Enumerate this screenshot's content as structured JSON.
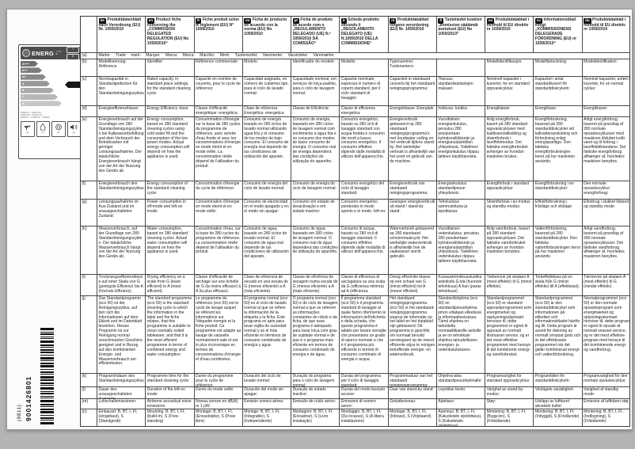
{
  "sidebar": {
    "markers": {
      "top_left": "a)",
      "top_right": "b)",
      "bars_right": "(d)"
    },
    "energy_label": {
      "title": "ENERG",
      "subtitle_lines": [
        "Y IJA",
        "IE"
      ],
      "window_labels": [
        "I",
        "II"
      ],
      "classes": [
        "A+++",
        "A++",
        "A+",
        "A",
        "B",
        "C",
        "D"
      ],
      "class_colors": [
        "#6f6f6f",
        "#7c7c7c",
        "#8a8a8a",
        "#999999",
        "#a8a8a8",
        "#b7b7b7",
        "#c6c6c6"
      ],
      "word_lines": [
        "ENERGIA · ЕНЕРГИЯ",
        "ΕΝΕΡΓΕΙΑ · ENERGIJA",
        "ENERGY · ENERGIE · ENERGI"
      ],
      "icon_names": [
        "tap-icon",
        "water-drop-icon",
        "dishes-icon",
        "speaker-icon"
      ],
      "icon_marks": [
        "(b)",
        "(c)",
        "(d)",
        "(e)"
      ]
    },
    "barcode": {
      "number": "9001426801",
      "batch": "(9811)"
    }
  },
  "table": {
    "languages": [
      {
        "code": "de",
        "title": "Produktdatenblatt nach Verordnung (EU) Nr. 1059/2010"
      },
      {
        "code": "en",
        "title": "Product fiche concerning the „COMMISSION DELEGATED REGULATION (EU) No 1059/2010“"
      },
      {
        "code": "fr",
        "title": "Fiche produit selon le règlement (EU) N° 1059/2010"
      },
      {
        "code": "es",
        "title": "Ficha de producto de acuerdo con la norma (EU) No 1059/2010"
      },
      {
        "code": "pt",
        "title": "Ficha de produto de acordo com o „REGULAMENTO DELEGADO (UE) N.º 1059/2010 DA COMISSÃO“"
      },
      {
        "code": "it",
        "title": "Scheda prodotto secondo il „REGOLAMENTO DELEGATO (UE) N.1059/2010 DELLA COMMISSIONE“"
      },
      {
        "code": "nl",
        "title": "Produktdatablad volgens verordening (EU) Nr. 1059/2010"
      },
      {
        "code": "fi",
        "title": "Tuotetiedot koskien „komission säätämät asetukset (EU) No 1059/2010“"
      },
      {
        "code": "no",
        "title": "Produktdatablad i henhold til EU direktiv nr 1059/2010"
      },
      {
        "code": "sv",
        "title": "Informationsblad enligt „KOMMISSIONENS DELEGERADE FÖRORDNING (EU) nr 1059/2010“"
      },
      {
        "code": "da",
        "title": "Produktdatablad i henhold til EU direktiv nr 1059/2010"
      }
    ],
    "rows": [
      {
        "key": "a",
        "label": "(a)",
        "merged": true,
        "text": "Marke: Trade mark: Marque: Marca: Marca: Marchio: Merk: Tuotemerkki: Varemerke: Varumärke: Varemærke:"
      },
      {
        "key": "b",
        "label": "(b)",
        "cells": [
          "Modellkennung: Référence",
          "Identifier:",
          "Référence commerciale:",
          "Modelo:",
          "Identificador do modelo:",
          "Modello:",
          "Typenummer: Tuotenumero:",
          "",
          "Modellidentifikasjon:",
          "Modellbeteckning:",
          "Modelidentifikation:"
        ]
      },
      {
        "key": "c",
        "label": "(c)",
        "cells": [
          "Nennkapazität in Standardgedecken für den Standardreinigungszyklus:",
          "Rated capacity, in standard place settings, for the standard cleaning cycle:",
          "Capacité en nombre de couverts, pour le cycle de référence:",
          "Capacidad asignada, en número de cubiertos tipo, para el ciclo de lavado normal:",
          "Capacidade nominal, em serviços de loiça-padrão, para o ciclo de lavagem normal:",
          "Capacità nominale, espressa in numero di coperti standard, per il ciclo standard di lavaggio:",
          "Capaciteit in standaard couverts bij het standaard reinigingsprogramma:",
          "Tilavuus standardiastiastojen mukaan:",
          "Nominell kapasitet i kuverter, for en standard oppvaskcyklus:",
          "Kapacitet i antal standardkuvert för standarddiskcykeln:",
          "Nominel kapacitet, anført i kuverter, for en normal cyklus:"
        ]
      },
      {
        "key": "d",
        "label": "(d)",
        "cells": [
          "Energieeffizienzklasse:",
          "Energy Efficiency class:",
          "Classe d'efficacité énergétique: energética:",
          "Clase de eficiencia Energética: energetica:",
          "Classe de Eficiência:",
          "Classe di efficienza energetica:",
          "Energieklasse: Energiate",
          "hokkuus- luokka:",
          "Energiklasse:",
          "Energiklass:",
          "Energiklasse:"
        ]
      },
      {
        "key": "e",
        "label": "(e)",
        "cells": [
          "Energieverbrauch auf der Grundlage von 280 Standardreinigungszyklen bei Kaltwasserbefüllung und dem Verbrauch der Betriebsarten mit geringer Leistungsaufnahme. Der tatsächliche Energieverbrauch hängt von der Art der Nutzung des Geräts ab.",
          "Energy consumption, based on 280 standard cleaning cycles using cold water fill and the consumption of the low power modes. Actual energy consumption will depend on how the appliance is used.",
          "Consommation d'énergie sur la base de 280 cycles du programme de référence, avec arrivée d'eau froide et avec les consommations d'énergie en mode éteint et en mode veille. La consommation réelle dépend de l'utilisation du produit.",
          "Consumo de energía basado en 280 ciclos de lavado normal utilizando agua fría y el consumo de los modos de bajo consumo. El consumo de energía real depende de las condiciones de utilización del aparato.",
          "Consumo de energia, baseado em 280 ciclos de lavagem normal com enchimento a água fria e no consumo dos modos de baixo consumo de energia. O consumo real de energia dependerá das condições de utilização do aparelho.",
          "Consumo energetico, basato su 280 cicli di lavaggio standard con acqua fredda e consumo dei modi a basso consumo energetico. Il consumo effettivo dipende dalle modalità di utilizzo dell'apparecchio.",
          "Energieverbruik gebaseerd op 280 standaard reinigingsprogramma's met koudwater vulling en het verbruik tijdens stand-by. Het werkelijke verbruik is afhankelijk van het soort en gebruik van de machine.",
          "Vuosittainen energiankulutus, perustuu 280 pesukertaan kylmävesiliitännän ja energiansäästötilan yhteydessä. Todellinen energiankulutus riippuu laitteen käyttötavoista.",
          "Årlig energiforbruk, basert på 280 standard oppvaskcykluser med kaldtvannstilkobling og strømforbruk i laveffektmodus. Det faktiske energiforbruket avhenger av hvordan maskinen brukes.",
          "Energiförbrukning, baserad på 280 standarddiskcykler vid kallvattenanslutning och förbrukning enligt energisparläge. Den faktiska energiförbrukningen beror på hur maskinen används.",
          "Årligt energiforbrug, baseret på grundlag af 280 normale opvaskecyklusser med maskinen tilsluttet koldt vand og til forbrug i laveffekttilstandene. Det faktiske energiforbrug afhænger af, hvorledes maskinen benyttes."
        ]
      },
      {
        "key": "f",
        "label": "(f)",
        "cells": [
          "Energieverbrauch des Standardreinigungszyklus:",
          "Energy consumption of the standard cleaning cycle:",
          "Consommation d'énergie du cycle de référence:",
          "Consumo de energía del ciclo de lavado normal:",
          "Consumo de energia do ciclo de lavagem normal:",
          "Consumo energetico del ciclo di lavaggio standard:",
          "Energieverbruik van standaard reinigingsprogramma:",
          "Energiankulutus standardipesun yhteydessä:",
          "Energiforbruk i standard oppvaskcyklus:",
          "Energiförbrukning i en standarddiskcykel:",
          "Den normale opvaskecyklus' energiforbrug:"
        ]
      },
      {
        "key": "g",
        "label": "(g)",
        "cells": [
          "Leistungsaufnahme im Aus-Zustand und im unausgeschalteten Zustand:",
          "Power consumption in off-mode and left-on mode:",
          "Consommation d'énergie en mode éteint et en mode veille:",
          "Consumo de electricidad en el modo apagado y en el modo sin apagar:",
          "Consumo em estado de desactivação e em estado inactivo:",
          "Consumo energetico ponderato in modo spento e in modo -left-on:",
          "Gewogen energieverbruik uit-stand / stand-by stand:",
          "Tehokulutus sammutettuna ja lepotilassa:",
          "Strømforbruk i av-modus og standby-modus:",
          "Effektförbrukning i frånläge och viloläge:",
          "Elforbrug i slukket tilstand og standby mode:"
        ]
      },
      {
        "key": "h",
        "label": "(h)",
        "cells": [
          "Wasserverbrauch, auf der Grundlage von 280 Standardreinigungszyklen. Der tatsächliche Wasserverbrauch hängt von der Art der Nutzung des Geräts ab.",
          "Water consumption, based on 280 standard cleaning cycles. Actual water consumption will depend on how the appliance is used.",
          "Consommation d'eau, sur la base de 280 cycles du programme de référence. La consommation réelle dépend de l'utilisation du produit.",
          "Consumo de agua, basado en 280 ciclos de lavado normal. El consumo de agua real depende de las condiciones de utilización del aparato.",
          "Consumo de água, baseado em 280 ciclos de lavagem normal. O consumo real de água dependerá das condições de utilização do aparelho.",
          "Consumo di acqua, basato su 280 cicli di lavaggio standard. Il consumo effettivo dipende dalle modalità di utilizzo dell'apparecchio.",
          "Waterverbruik gebaseerd op 280 standaard schoonmaakcycli. Het werkelijke waterverbruik is afhankelijk hoe de vaatwasser wordt gebruikt.",
          "Vuosittainen vedenkulutus, perustuu 280 pesukertaan kylmävesiliitännän ja energiansäästötilan yhteydessä. Todellinen vedenkulutus riippuu laitteen käyttötavoista.",
          "Årlig vannforbruk, basert på 280 standard oppvaskcykluser. Det faktiske vannforbruket avhenger av hvordan maskinen benyttes.",
          "Vattenförbrukning, baserad på 280 standarddiskcykler. Den faktiska vattenförbrukningen beror på hur maskinen används.",
          "Årligt vandforbrug, baseret på grundlag af 280 normale opvaskecyklusser. Det faktiske vandforbrug afhænger af, hvorledes maskinen benyttes."
        ]
      },
      {
        "key": "i",
        "label": "(i)",
        "cells": [
          "Trocknungseffizienzklasse auf einer Skala von G (geringste Effizienz) bis A (höchste Effizienz).",
          "Drying efficiency on a scale from G (least efficient) to A (most efficient).",
          "Classe d'efficacité de séchage sur une échelle de G (la moins efficace) à A (la plus efficace).",
          "Clase de eficiencia de secado en una escala de G (menos eficiente) a A (más eficiente).",
          "Classe de eficiência de secagem numa escala de G (menos eficiente) a A (mais eficiente).",
          "Classe di efficienza di asciugatura su una scala da G (efficienza minima) ad A (efficienza massima).",
          "Droog efficiëntie klasse op een schaal van G (minst efficiënt) tot A (meest efficiënt)",
          "Kuivaustehokkuusluokka asteikolla G:stä (huonoin tehokkuus) A:han (paras tehokkuus)",
          "Tørkeevne på skalaen A (mest effektiv) til G (minst effektiv).",
          "Torkeffektklass på en skala från G (minst effektiv) till A (effektivast).",
          "Tørreevne på skalaen A (mest effektiv) til G (mindst effektiv)."
        ]
      },
      {
        "key": "j",
        "label": "(j)",
        "cells": [
          "Das Standardprogramm (eco 50) ist der Reinigungszyklus, auf den sich die Informationen auf dem Etikett und im Datenblatt beziehen. Dieses Programm ist zur Reinigung normal verschmutzten Geschirrs geeignet und in Bezug auf den kombinierten Energie- und Wasserverbrauch am effizientesten.",
          "The standard programme (eco 50) is the standard cleaning cycle to which the information in the label and the fiche relates, that this programme is suitable to clean normally soiled tableware, and that it is the most efficient programme in terms of combined energy and water consumption",
          "Le programme de référence (eco 50) est le cycle de lavage auquel se réfèrent les informations sur l'étiquette énergie et la fiche produit. Ce programme est adapté au lavage de vaisselle normalement sale et est le plus économique en termes de consommations d'énergie et d'eau combinées.",
          "El programa normal (eco 50) es el ciclo de lavado normal al que se refiere la información de la etiqueta y la ficha. Este programa es apto para lavar vajilla de suciedad normal y es el más eficiente en términos de consumo combinado de energía y agua.",
          "O programa normal (eco 50) é do ciclo de lavagem normal a que se referem as informações constantes do rótulo e da ficha, de que esse programa é adequado para lavar loiça com grau de sujidade normal e de que é o programa mais eficiente em termos de consumo combinado de energia e de água.",
          "Il programma standard (eco 50) è il programma standard di lavaggio al quale fanno riferimento le informazioni dell'etichetta e della scheda, che questo programma è adatto per lavare stoviglie che presentano un grado di sporco normale e che è il programma più efficiente in termini di consumo combinato di energia e acqua.",
          "Het standaard reinigingsprogramma (eco 50) is het standaard-reinigingsprogramma waarop de informatie op het label en het datablad zijn gebaseerd. Dit programma is geschikt om normaal bevuild serviesgoed op de meest efficiente wijze te reinigen betreffende energie- en waterverbruik.",
          "Standardiohjelma (eco 50) on standardipesuohjelma, johon viitataan etiketissä ja informaatiosivuissa. Tämä ohjelma on tarkoitettu normaalilikaisille astioille ja se on tehokkain ohjelma taloudelliseen energian- ja vedenkulutukseen.",
          "Standardprogrammet (eco 50) er standard oppvaskprogrammet som energimerket og opplysningsskjemaet henviser til; dette programmet er egnet til oppvask av normalt tilsmusset service, og er det mest effektive programmet med hensyn til det kombinerte energi- og vannforbruket.",
          "Standardprogrammet (eco 50) är den standarddiskcykel som informationen på etiketten och informationsbladet hänför sig till. Detta program är avsett för diskning av normalt smutsat gods och är det effektivaste programmet när det gäller kombinerad energi- och vattenförbrukning.",
          "Normalprogrammet (eco 50) er den normale opvaskeprogram som energimærket og oplysningsskemaet henviser til, dette program er egnet til opvask af normalt snavset service, og er det mest effektive program med hensyn til det kombinerede energi- og vandforbrug."
        ]
      },
      {
        "key": "k",
        "label": "(k)",
        "cells": [
          "Programmdauer des Standardreinigungszyklus:",
          "Programme time for the standard cleaning cycle:",
          "Durée du programme pour le cycle de référence:",
          "Duración del ciclo de lavado normal:",
          "Duração do programa para o ciclo de lavagem normal:",
          "Durata del programma per il ciclo di lavaggio standard:",
          "Programmaduur van het standaard reinigingsprogramma:",
          "Ohjelma-aika standardipesuohjelmalle:",
          "Programvarighet for standard oppvaskcyklus:",
          "Programtiden för standarddiskcykeln:",
          "Programvarighed for den normale opvaskecyklus:"
        ]
      },
      {
        "key": "l",
        "label": "(l)",
        "cells": [
          "Dauer des unausgeschalteten Zustands:",
          "Duration of the left-on mode:",
          "Durée du mode veille:",
          "Duración del modo sin apagar:",
          "Duração do estado inactivo:",
          "Durata del modo lasciato acceso:",
          "Duur van stand-by stand:",
          "Lepotilan kesto:",
          "Varighet av stand-by-modus:",
          "Vilolägets varaktighet:",
          "Varighed af standby mode:"
        ]
      },
      {
        "key": "m",
        "label": "(m)",
        "cells": [
          "Luftschallemissionen:",
          "Airborne acoustical noise emissions:",
          "Niveau sonore en dB(A) re 1 pW:",
          "Emisión sonora aérea:",
          "Emissão de ruído aéreo:",
          "Emissioni di rumore aereo:",
          "Geluidsniveau:",
          "Äänitaso:",
          "Støy:",
          "Utsläpp av luftburet akustiskt buller:",
          "Emission af luftbåren støj:"
        ]
      },
      {
        "key": "n",
        "label": "(n)",
        "cells": [
          "Einbauart: B, BT, I, FI, (eingebaut), S (Standgerät)",
          "Mounting: B, BT, I, FI, (build-in), S (Free-standing)",
          "Montage: B, BT, I, FI, (Encastrable), S (Pose libre)",
          "Montaje: B, BT, I, FI, (Integrable), S (Independiente)",
          "Montagem: B, BT, I, FI, (Encastrar), S (Livre instalação)",
          "Montaggio: B, BT, I, FI, (Da incasso), S (A libera installazione)",
          "Montage: B, BT, I, FI, (Inbouw), S (Vrijstaand)",
          "Asennus: B, BT, I, FI, (Kalusteisiin sijoitettava), S (Kalusteisiin sijoitettava)",
          "Montering: B, BT, I, FI, (Bygg-inn), S (Frittstående)",
          "Montering: B, BT, I, FI, (Inbyggd), S (Fristående)",
          "Montering: B, BT, I, FI, (Indbygning), S (Fritstående)"
        ]
      }
    ]
  }
}
